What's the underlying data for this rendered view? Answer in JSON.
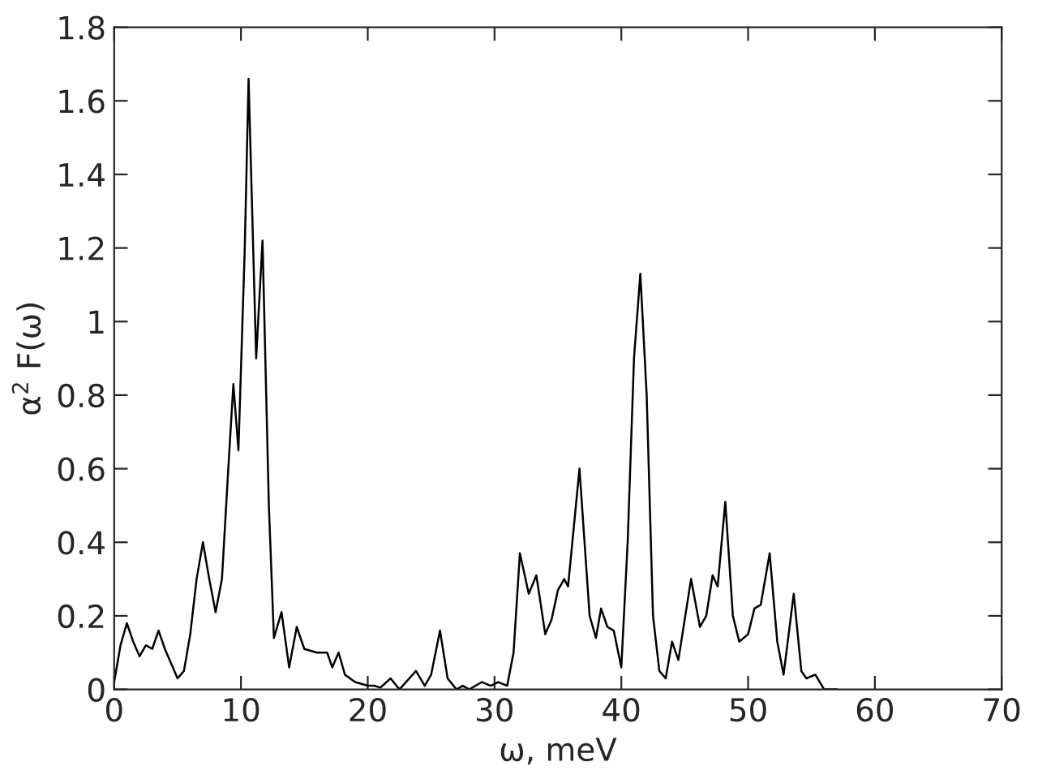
{
  "chart_data": {
    "type": "line",
    "xlabel": "ω, meV",
    "ylabel": "α$^{2}$ F(ω)",
    "xlim": [
      0,
      70
    ],
    "ylim": [
      0,
      1.8
    ],
    "xticks": [
      0,
      10,
      20,
      30,
      40,
      50,
      60,
      70
    ],
    "yticks": [
      0,
      0.2,
      0.4,
      0.6,
      0.8,
      {
        "value": 1,
        "label": "1"
      },
      1.2,
      1.4,
      1.6,
      1.8
    ],
    "grid": false,
    "legend": false,
    "marker": "none",
    "line_style": "solid",
    "series": [
      {
        "color": "#000000",
        "x": [
          0,
          0.5,
          1.0,
          1.5,
          2,
          2.5,
          3,
          3.5,
          4,
          5,
          5.5,
          6,
          6.5,
          7,
          7.5,
          8,
          8.5,
          9,
          9.4,
          9.8,
          10.3,
          10.6,
          11.2,
          11.7,
          12.2,
          12.6,
          13.2,
          13.8,
          14.4,
          15,
          16,
          16.8,
          17.2,
          17.7,
          18.2,
          19,
          20,
          20.5,
          21,
          21.8,
          22.5,
          23.8,
          24.5,
          25,
          25.7,
          26.3,
          27,
          27.5,
          28,
          29,
          29.7,
          30.3,
          31,
          31.5,
          32,
          32.7,
          33.3,
          34,
          34.5,
          35,
          35.5,
          35.8,
          36.7,
          37.5,
          38,
          38.4,
          38.9,
          39.4,
          40,
          40.5,
          41,
          41.5,
          42,
          42.5,
          43,
          43.5,
          44,
          44.5,
          45.5,
          46.2,
          46.7,
          47.2,
          47.6,
          48.2,
          48.8,
          49.3,
          50,
          50.5,
          51,
          51.7,
          52.3,
          52.8,
          53.6,
          54.2,
          54.6,
          55.3,
          56,
          57
        ],
        "values": [
          0.02,
          0.12,
          0.18,
          0.13,
          0.09,
          0.12,
          0.11,
          0.16,
          0.11,
          0.03,
          0.05,
          0.15,
          0.3,
          0.4,
          0.3,
          0.21,
          0.3,
          0.6,
          0.83,
          0.65,
          1.2,
          1.66,
          0.9,
          1.22,
          0.5,
          0.14,
          0.21,
          0.06,
          0.17,
          0.11,
          0.1,
          0.1,
          0.06,
          0.1,
          0.04,
          0.02,
          0.01,
          0.01,
          0.005,
          0.03,
          0.0,
          0.05,
          0.01,
          0.04,
          0.16,
          0.03,
          0.0,
          0.01,
          0.0,
          0.02,
          0.01,
          0.02,
          0.01,
          0.1,
          0.37,
          0.26,
          0.31,
          0.15,
          0.19,
          0.27,
          0.3,
          0.28,
          0.6,
          0.2,
          0.14,
          0.22,
          0.17,
          0.16,
          0.06,
          0.4,
          0.9,
          1.13,
          0.8,
          0.2,
          0.05,
          0.03,
          0.13,
          0.08,
          0.3,
          0.17,
          0.2,
          0.31,
          0.28,
          0.51,
          0.2,
          0.13,
          0.15,
          0.22,
          0.23,
          0.37,
          0.13,
          0.04,
          0.26,
          0.05,
          0.03,
          0.04,
          0.0,
          0.0
        ]
      }
    ]
  }
}
